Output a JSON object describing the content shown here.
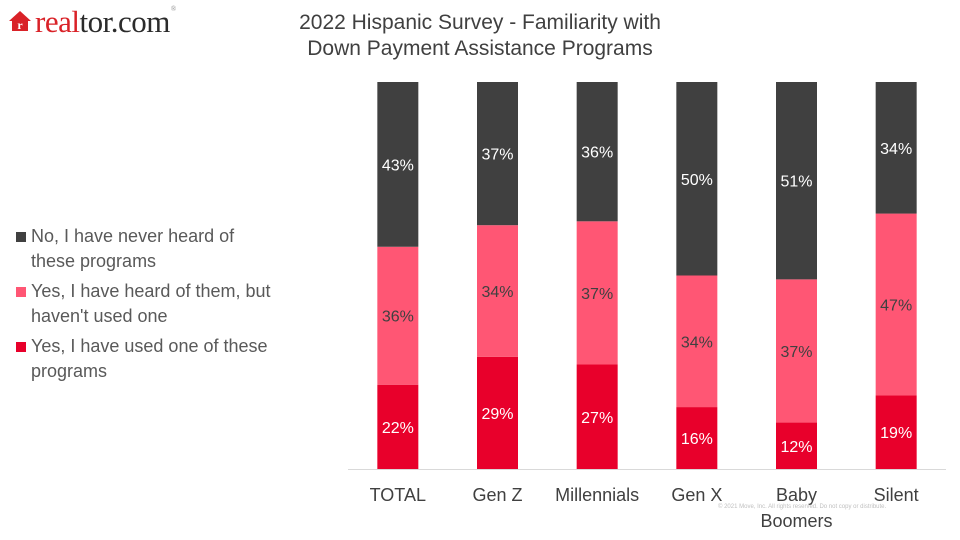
{
  "logo": {
    "brand_red": "real",
    "brand_dark": "tor.com",
    "mark": "®",
    "icon": "house-r-icon"
  },
  "copyright": "© 2021 Move, Inc. All rights reserved. Do not copy or distribute.",
  "chart_data": {
    "type": "bar",
    "stacked": true,
    "normalized": true,
    "title": "2022 Hispanic Survey - Familiarity with Down Payment Assistance Programs",
    "title_lines": [
      "2022 Hispanic Survey - Familiarity with",
      "Down Payment Assistance Programs"
    ],
    "xlabel": "",
    "ylabel": "",
    "ylim": [
      0,
      100
    ],
    "grid": false,
    "legend_position": "left",
    "categories": [
      "TOTAL",
      "Gen Z",
      "Millennials",
      "Gen X",
      "Baby Boomers",
      "Silent"
    ],
    "category_lines": [
      [
        "TOTAL"
      ],
      [
        "Gen Z"
      ],
      [
        "Millennials"
      ],
      [
        "Gen X"
      ],
      [
        "Baby",
        "Boomers"
      ],
      [
        "Silent"
      ]
    ],
    "series": [
      {
        "name": "Yes, I have used one of these programs",
        "legend_lines": [
          "Yes, I have used one of these",
          "programs"
        ],
        "color": "#e8002b",
        "label_color": "#ffffff",
        "values": [
          22,
          29,
          27,
          16,
          12,
          19
        ]
      },
      {
        "name": "Yes, I have heard of them, but haven't used one",
        "legend_lines": [
          "Yes, I have heard of them, but",
          "haven't used one"
        ],
        "color": "#ff5674",
        "label_color": "#404040",
        "values": [
          36,
          34,
          37,
          34,
          37,
          47
        ]
      },
      {
        "name": "No, I have never heard of these programs",
        "legend_lines": [
          "No, I have never heard of",
          "these programs"
        ],
        "color": "#404040",
        "label_color": "#ffffff",
        "values": [
          43,
          37,
          36,
          50,
          51,
          34
        ]
      }
    ],
    "value_suffix": "%",
    "axis_color": "#d9d9d9",
    "tick_label_color": "#404040"
  }
}
